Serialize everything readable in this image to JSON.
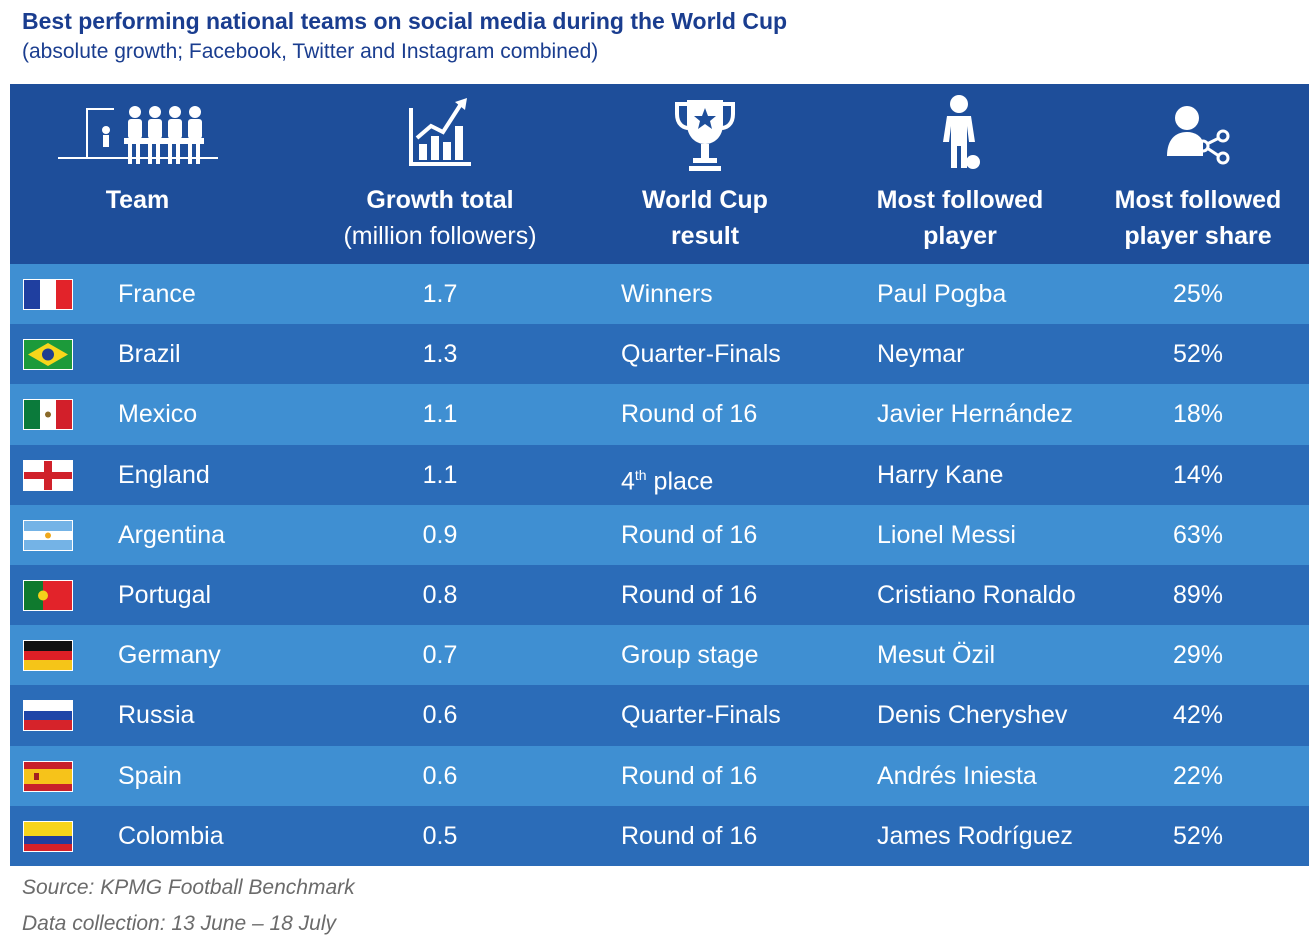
{
  "header": {
    "title": "Best performing national teams on social media during the World Cup",
    "subtitle": "(absolute growth; Facebook, Twitter and Instagram combined)"
  },
  "columns": {
    "team": "Team",
    "growth_line1": "Growth total",
    "growth_line2": "(million followers)",
    "result_line1": "World Cup",
    "result_line2": "result",
    "player_line1": "Most followed",
    "player_line2": "player",
    "share_line1": "Most followed",
    "share_line2": "player share"
  },
  "icons": [
    "team-icon",
    "growth-chart-icon",
    "trophy-icon",
    "player-icon",
    "share-icon"
  ],
  "colors": {
    "header": "#1e4e9a",
    "row_light": "#3f8fd2",
    "row_dark": "#2b6cb8",
    "title": "#1a3d8f"
  },
  "chart_data": {
    "type": "table",
    "columns": [
      "Team",
      "Growth total (million followers)",
      "World Cup result",
      "Most followed player",
      "Most followed player share"
    ],
    "rows": [
      {
        "team": "France",
        "growth": "1.7",
        "result": "Winners",
        "result_sup": "",
        "player": "Paul Pogba",
        "share": "25%",
        "flag": "france-flag"
      },
      {
        "team": "Brazil",
        "growth": "1.3",
        "result": "Quarter-Finals",
        "result_sup": "",
        "player": "Neymar",
        "share": "52%",
        "flag": "brazil-flag"
      },
      {
        "team": "Mexico",
        "growth": "1.1",
        "result": "Round of 16",
        "result_sup": "",
        "player": "Javier Hernández",
        "share": "18%",
        "flag": "mexico-flag"
      },
      {
        "team": "England",
        "growth": "1.1",
        "result": "4",
        "result_sup": "th",
        "result_rest": " place",
        "player": "Harry Kane",
        "share": "14%",
        "flag": "england-flag"
      },
      {
        "team": "Argentina",
        "growth": "0.9",
        "result": "Round of 16",
        "result_sup": "",
        "player": "Lionel Messi",
        "share": "63%",
        "flag": "argentina-flag"
      },
      {
        "team": "Portugal",
        "growth": "0.8",
        "result": "Round of 16",
        "result_sup": "",
        "player": "Cristiano Ronaldo",
        "share": "89%",
        "flag": "portugal-flag"
      },
      {
        "team": "Germany",
        "growth": "0.7",
        "result": "Group stage",
        "result_sup": "",
        "player": "Mesut Özil",
        "share": "29%",
        "flag": "germany-flag"
      },
      {
        "team": "Russia",
        "growth": "0.6",
        "result": "Quarter-Finals",
        "result_sup": "",
        "player": "Denis Cheryshev",
        "share": "42%",
        "flag": "russia-flag"
      },
      {
        "team": "Spain",
        "growth": "0.6",
        "result": "Round of 16",
        "result_sup": "",
        "player": "Andrés Iniesta",
        "share": "22%",
        "flag": "spain-flag"
      },
      {
        "team": "Colombia",
        "growth": "0.5",
        "result": "Round of 16",
        "result_sup": "",
        "player": "James Rodríguez",
        "share": "52%",
        "flag": "colombia-flag"
      }
    ]
  },
  "footer": {
    "source": "Source: KPMG Football Benchmark",
    "collection": "Data collection: 13 June – 18 July"
  }
}
